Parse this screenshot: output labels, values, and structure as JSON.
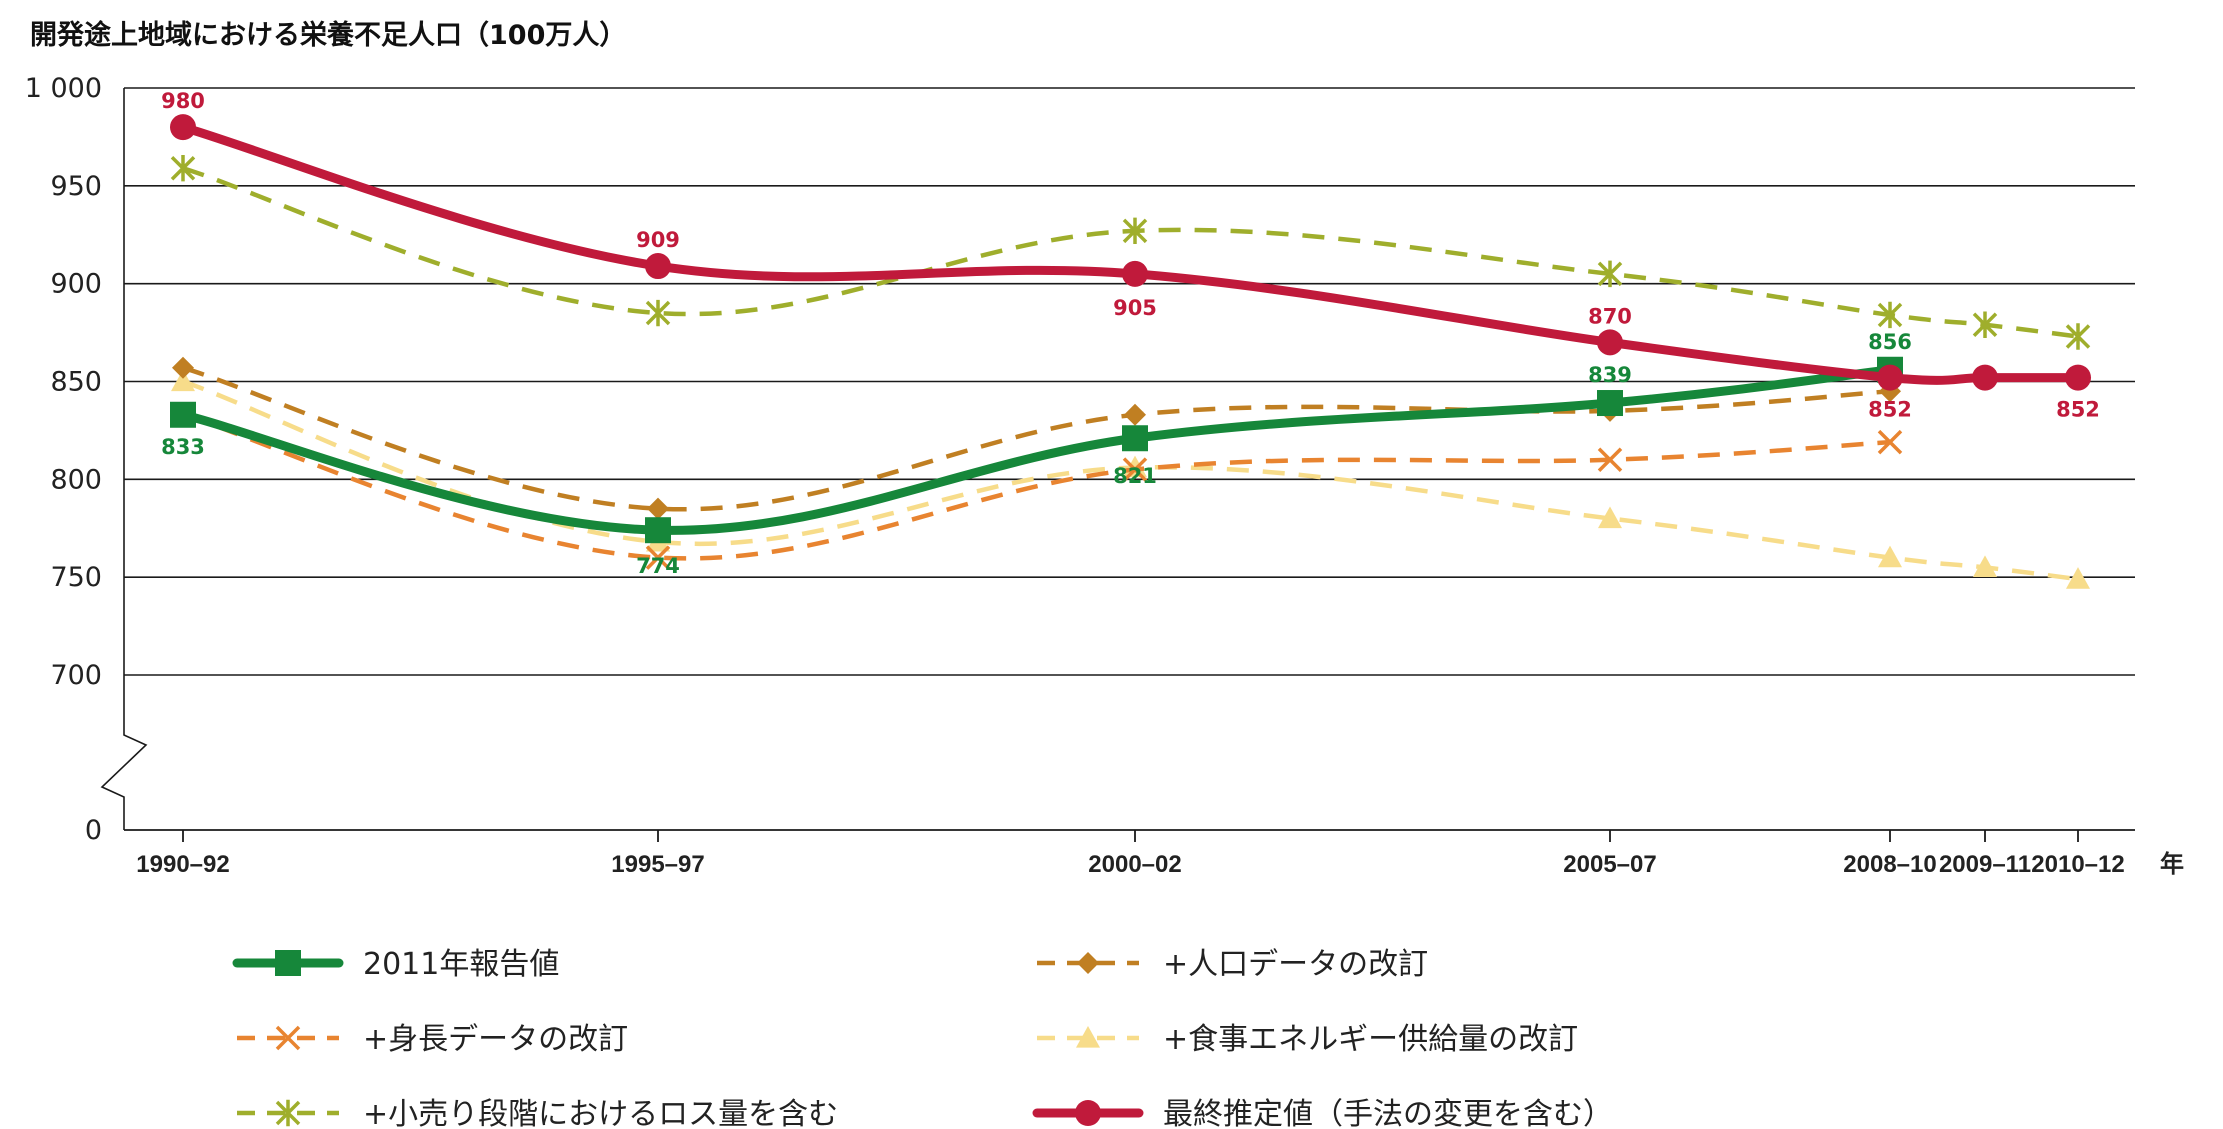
{
  "chart_data": {
    "type": "line",
    "title": "開発途上地域における栄養不足人口（100万人）",
    "xlabel": "年",
    "ylabel": "",
    "ylim": [
      0,
      1000
    ],
    "yticks": [
      {
        "value": 1000,
        "label": "1 000"
      },
      {
        "value": 950,
        "label": "950"
      },
      {
        "value": 900,
        "label": "900"
      },
      {
        "value": 850,
        "label": "850"
      },
      {
        "value": 800,
        "label": "800"
      },
      {
        "value": 750,
        "label": "750"
      },
      {
        "value": 700,
        "label": "700"
      },
      {
        "value": 0,
        "label": "0"
      }
    ],
    "axis_break": [
      620,
      700
    ],
    "grid": true,
    "legend_position": "bottom",
    "categories": [
      "1990–92",
      "1995–97",
      "2000–02",
      "2005–07",
      "2008–10",
      "2009–11",
      "2010–12"
    ],
    "series": [
      {
        "name": "2011年報告値",
        "color": "#16873a",
        "style": "solid",
        "marker": "square",
        "values": [
          833,
          774,
          821,
          839,
          856,
          null,
          null
        ],
        "labels": [
          "833",
          "774",
          "821",
          "839",
          "856",
          null,
          null
        ]
      },
      {
        "name": "+人口データの改訂",
        "color": "#c07f22",
        "style": "dashed",
        "marker": "diamond",
        "values": [
          857,
          785,
          833,
          835,
          845,
          null,
          null
        ],
        "labels": [
          null,
          null,
          null,
          null,
          null,
          null,
          null
        ]
      },
      {
        "name": "+身長データの改訂",
        "color": "#e88430",
        "style": "dashed",
        "marker": "x",
        "values": [
          833,
          760,
          805,
          810,
          819,
          null,
          null
        ],
        "labels": [
          null,
          null,
          null,
          null,
          null,
          null,
          null
        ]
      },
      {
        "name": "+食事エネルギー供給量の改訂",
        "color": "#f7dc8a",
        "style": "dashed",
        "marker": "triangle",
        "values": [
          850,
          768,
          806,
          780,
          760,
          755,
          749
        ],
        "labels": [
          null,
          null,
          null,
          null,
          null,
          null,
          null
        ]
      },
      {
        "name": "+小売り段階におけるロス量を含む",
        "color": "#9fae2c",
        "style": "dashed",
        "marker": "asterisk",
        "values": [
          959,
          885,
          927,
          905,
          884,
          879,
          873
        ],
        "labels": [
          null,
          null,
          null,
          null,
          null,
          null,
          null
        ]
      },
      {
        "name": "最終推定値（手法の変更を含む）",
        "color": "#c01a3b",
        "style": "solid",
        "marker": "circle",
        "values": [
          980,
          909,
          905,
          870,
          852,
          852,
          852
        ],
        "labels": [
          "980",
          "909",
          "905",
          "870",
          "852",
          null,
          "852"
        ]
      }
    ]
  }
}
